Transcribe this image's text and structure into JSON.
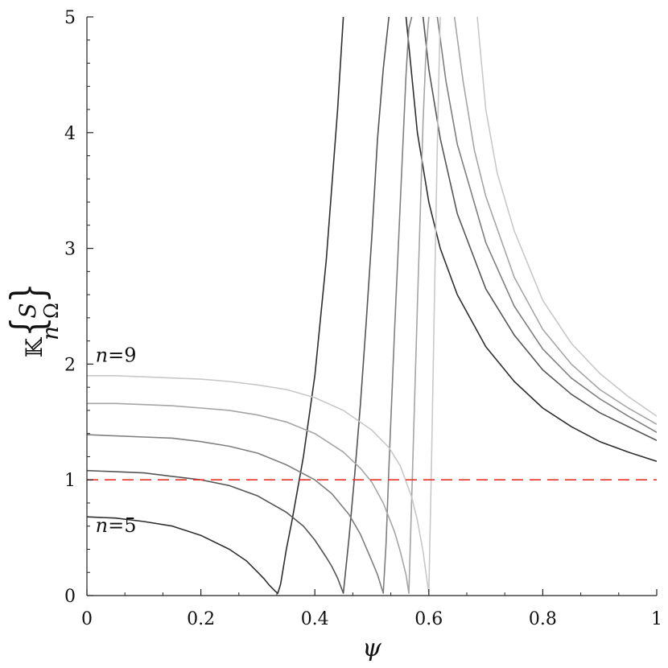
{
  "chart_data": {
    "type": "line",
    "title": "",
    "xlabel": "ψ",
    "ylabel_parts": {
      "prefix": "𝕂",
      "bracket_left": "{",
      "bracket_right": "}",
      "lower": "n",
      "upper_top": "S",
      "upper_bottom": "Ω"
    },
    "xlim": [
      0,
      1
    ],
    "ylim": [
      0,
      5
    ],
    "x_ticks": [
      {
        "value": 0,
        "label": "0"
      },
      {
        "value": 0.2,
        "label": "0.2"
      },
      {
        "value": 0.4,
        "label": "0.4"
      },
      {
        "value": 0.6,
        "label": "0.6"
      },
      {
        "value": 0.8,
        "label": "0.8"
      },
      {
        "value": 1,
        "label": "1"
      }
    ],
    "y_ticks": [
      {
        "value": 0,
        "label": "0"
      },
      {
        "value": 1,
        "label": "1"
      },
      {
        "value": 2,
        "label": "2"
      },
      {
        "value": 3,
        "label": "3"
      },
      {
        "value": 4,
        "label": "4"
      },
      {
        "value": 5,
        "label": "5"
      }
    ],
    "grid": false,
    "reference_line": {
      "y": 1,
      "color": "#e8332a",
      "style": "dashed"
    },
    "annotations": [
      {
        "n": "n",
        "eq": "=9",
        "x": 0.015,
        "y": 2.02
      },
      {
        "n": "n",
        "eq": "=5",
        "x": 0.015,
        "y": 0.55
      }
    ],
    "series": [
      {
        "color": "#2e2e2e",
        "x": [
          0,
          0.05,
          0.1,
          0.15,
          0.2,
          0.25,
          0.28,
          0.3,
          0.31,
          0.32,
          0.33,
          0.335,
          0.34,
          0.35,
          0.36,
          0.38,
          0.4,
          0.42,
          0.44,
          0.45
        ],
        "y": [
          0.68,
          0.67,
          0.64,
          0.6,
          0.52,
          0.4,
          0.3,
          0.2,
          0.15,
          0.09,
          0.04,
          0.02,
          0.1,
          0.4,
          0.65,
          1.2,
          1.9,
          2.9,
          4.2,
          5.0
        ]
      },
      {
        "color": "#2e2e2e",
        "x": [
          0.56,
          0.58,
          0.6,
          0.62,
          0.65,
          0.7,
          0.75,
          0.8,
          0.85,
          0.9,
          0.95,
          1.0
        ],
        "y": [
          5.0,
          4.0,
          3.4,
          3.0,
          2.6,
          2.15,
          1.85,
          1.62,
          1.46,
          1.33,
          1.24,
          1.16
        ]
      },
      {
        "color": "#555555",
        "x": [
          0,
          0.05,
          0.1,
          0.15,
          0.2,
          0.25,
          0.3,
          0.35,
          0.38,
          0.4,
          0.42,
          0.43,
          0.44,
          0.45,
          0.46,
          0.47,
          0.48,
          0.49,
          0.5,
          0.51,
          0.52,
          0.53
        ],
        "y": [
          1.08,
          1.07,
          1.06,
          1.03,
          1.0,
          0.95,
          0.86,
          0.72,
          0.6,
          0.48,
          0.33,
          0.25,
          0.15,
          0.02,
          0.5,
          1.05,
          1.65,
          2.35,
          3.1,
          3.95,
          4.55,
          5.0
        ]
      },
      {
        "color": "#555555",
        "x": [
          0.59,
          0.6,
          0.62,
          0.65,
          0.7,
          0.75,
          0.8,
          0.85,
          0.9,
          0.95,
          1.0
        ],
        "y": [
          5.0,
          4.55,
          3.95,
          3.3,
          2.65,
          2.25,
          1.95,
          1.74,
          1.58,
          1.46,
          1.34
        ]
      },
      {
        "color": "#7f7f7f",
        "x": [
          0,
          0.05,
          0.1,
          0.15,
          0.2,
          0.25,
          0.3,
          0.35,
          0.4,
          0.43,
          0.46,
          0.48,
          0.5,
          0.51,
          0.52,
          0.525,
          0.53,
          0.54,
          0.55,
          0.56,
          0.565,
          0.57
        ],
        "y": [
          1.39,
          1.38,
          1.37,
          1.36,
          1.33,
          1.29,
          1.23,
          1.13,
          1.0,
          0.88,
          0.7,
          0.53,
          0.3,
          0.18,
          0.02,
          0.45,
          1.1,
          2.3,
          3.4,
          4.5,
          4.9,
          5.0
        ]
      },
      {
        "color": "#7f7f7f",
        "x": [
          0.615,
          0.63,
          0.65,
          0.7,
          0.75,
          0.8,
          0.85,
          0.9,
          0.95,
          1.0
        ],
        "y": [
          5.0,
          4.45,
          3.9,
          3.05,
          2.5,
          2.13,
          1.88,
          1.7,
          1.55,
          1.41
        ]
      },
      {
        "color": "#a5a5a5",
        "x": [
          0,
          0.05,
          0.1,
          0.15,
          0.2,
          0.25,
          0.3,
          0.35,
          0.4,
          0.45,
          0.48,
          0.5,
          0.52,
          0.54,
          0.55,
          0.56,
          0.565,
          0.57,
          0.58,
          0.59,
          0.595,
          0.6
        ],
        "y": [
          1.66,
          1.66,
          1.65,
          1.64,
          1.62,
          1.6,
          1.56,
          1.5,
          1.4,
          1.24,
          1.1,
          0.98,
          0.8,
          0.55,
          0.38,
          0.18,
          0.02,
          0.85,
          2.5,
          4.1,
          4.7,
          5.0
        ]
      },
      {
        "color": "#a5a5a5",
        "x": [
          0.645,
          0.66,
          0.68,
          0.7,
          0.75,
          0.8,
          0.85,
          0.9,
          0.95,
          1.0
        ],
        "y": [
          5.0,
          4.45,
          3.85,
          3.45,
          2.75,
          2.3,
          2.0,
          1.78,
          1.62,
          1.48
        ]
      },
      {
        "color": "#c8c8c8",
        "x": [
          0,
          0.05,
          0.1,
          0.15,
          0.2,
          0.25,
          0.3,
          0.35,
          0.4,
          0.45,
          0.5,
          0.53,
          0.55,
          0.57,
          0.58,
          0.59,
          0.6,
          0.605,
          0.61,
          0.615,
          0.62
        ],
        "y": [
          1.9,
          1.9,
          1.89,
          1.88,
          1.87,
          1.85,
          1.82,
          1.78,
          1.71,
          1.6,
          1.43,
          1.28,
          1.12,
          0.85,
          0.65,
          0.38,
          0.02,
          1.2,
          2.6,
          3.9,
          5.0
        ]
      },
      {
        "color": "#c8c8c8",
        "x": [
          0.685,
          0.7,
          0.72,
          0.75,
          0.8,
          0.85,
          0.9,
          0.95,
          1.0
        ],
        "y": [
          5.0,
          4.2,
          3.65,
          3.15,
          2.55,
          2.18,
          1.92,
          1.72,
          1.55
        ]
      }
    ]
  }
}
